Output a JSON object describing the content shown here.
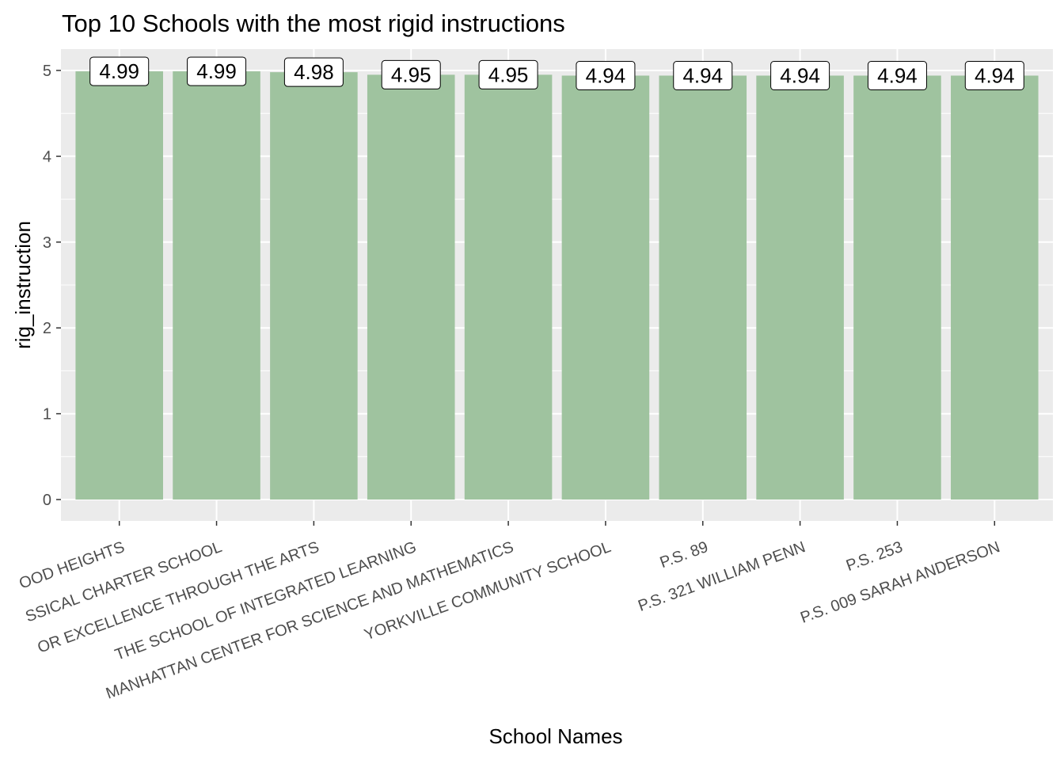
{
  "chart_data": {
    "type": "bar",
    "title": "Top 10 Schools with the most rigid instructions",
    "xlabel": "School Names",
    "ylabel": "rig_instruction",
    "categories": [
      "BEDFORD STUYVESANT NEW BEGINNINGS CHARTER SCHOOL / GREENWOOD HEIGHTS",
      "NEW YORK CLASSICAL CHARTER SCHOOL",
      "FOR EXCELLENCE THROUGH THE ARTS",
      "THE SCHOOL OF INTEGRATED LEARNING",
      "MANHATTAN CENTER FOR SCIENCE AND MATHEMATICS",
      "YORKVILLE COMMUNITY SCHOOL",
      "P.S. 89",
      "P.S. 321 WILLIAM PENN",
      "P.S. 253",
      "P.S. 009 SARAH ANDERSON"
    ],
    "tick_labels": [
      "OOD HEIGHTS",
      "SSICAL CHARTER SCHOOL",
      "OR EXCELLENCE THROUGH THE ARTS",
      "THE SCHOOL OF INTEGRATED LEARNING",
      "MANHATTAN CENTER FOR SCIENCE AND MATHEMATICS",
      "YORKVILLE COMMUNITY SCHOOL",
      "P.S. 89",
      "P.S. 321 WILLIAM PENN",
      "P.S. 253",
      "P.S. 009 SARAH ANDERSON"
    ],
    "values": [
      4.99,
      4.99,
      4.98,
      4.95,
      4.95,
      4.94,
      4.94,
      4.94,
      4.94,
      4.94
    ],
    "value_labels": [
      "4.99",
      "4.99",
      "4.98",
      "4.95",
      "4.95",
      "4.94",
      "4.94",
      "4.94",
      "4.94",
      "4.94"
    ],
    "ylim": [
      0,
      5
    ],
    "yticks": [
      0,
      1,
      2,
      3,
      4,
      5
    ],
    "grid": true,
    "bar_color": "#9fc39f",
    "panel_color": "#ebebeb",
    "grid_color": "#ffffff"
  }
}
